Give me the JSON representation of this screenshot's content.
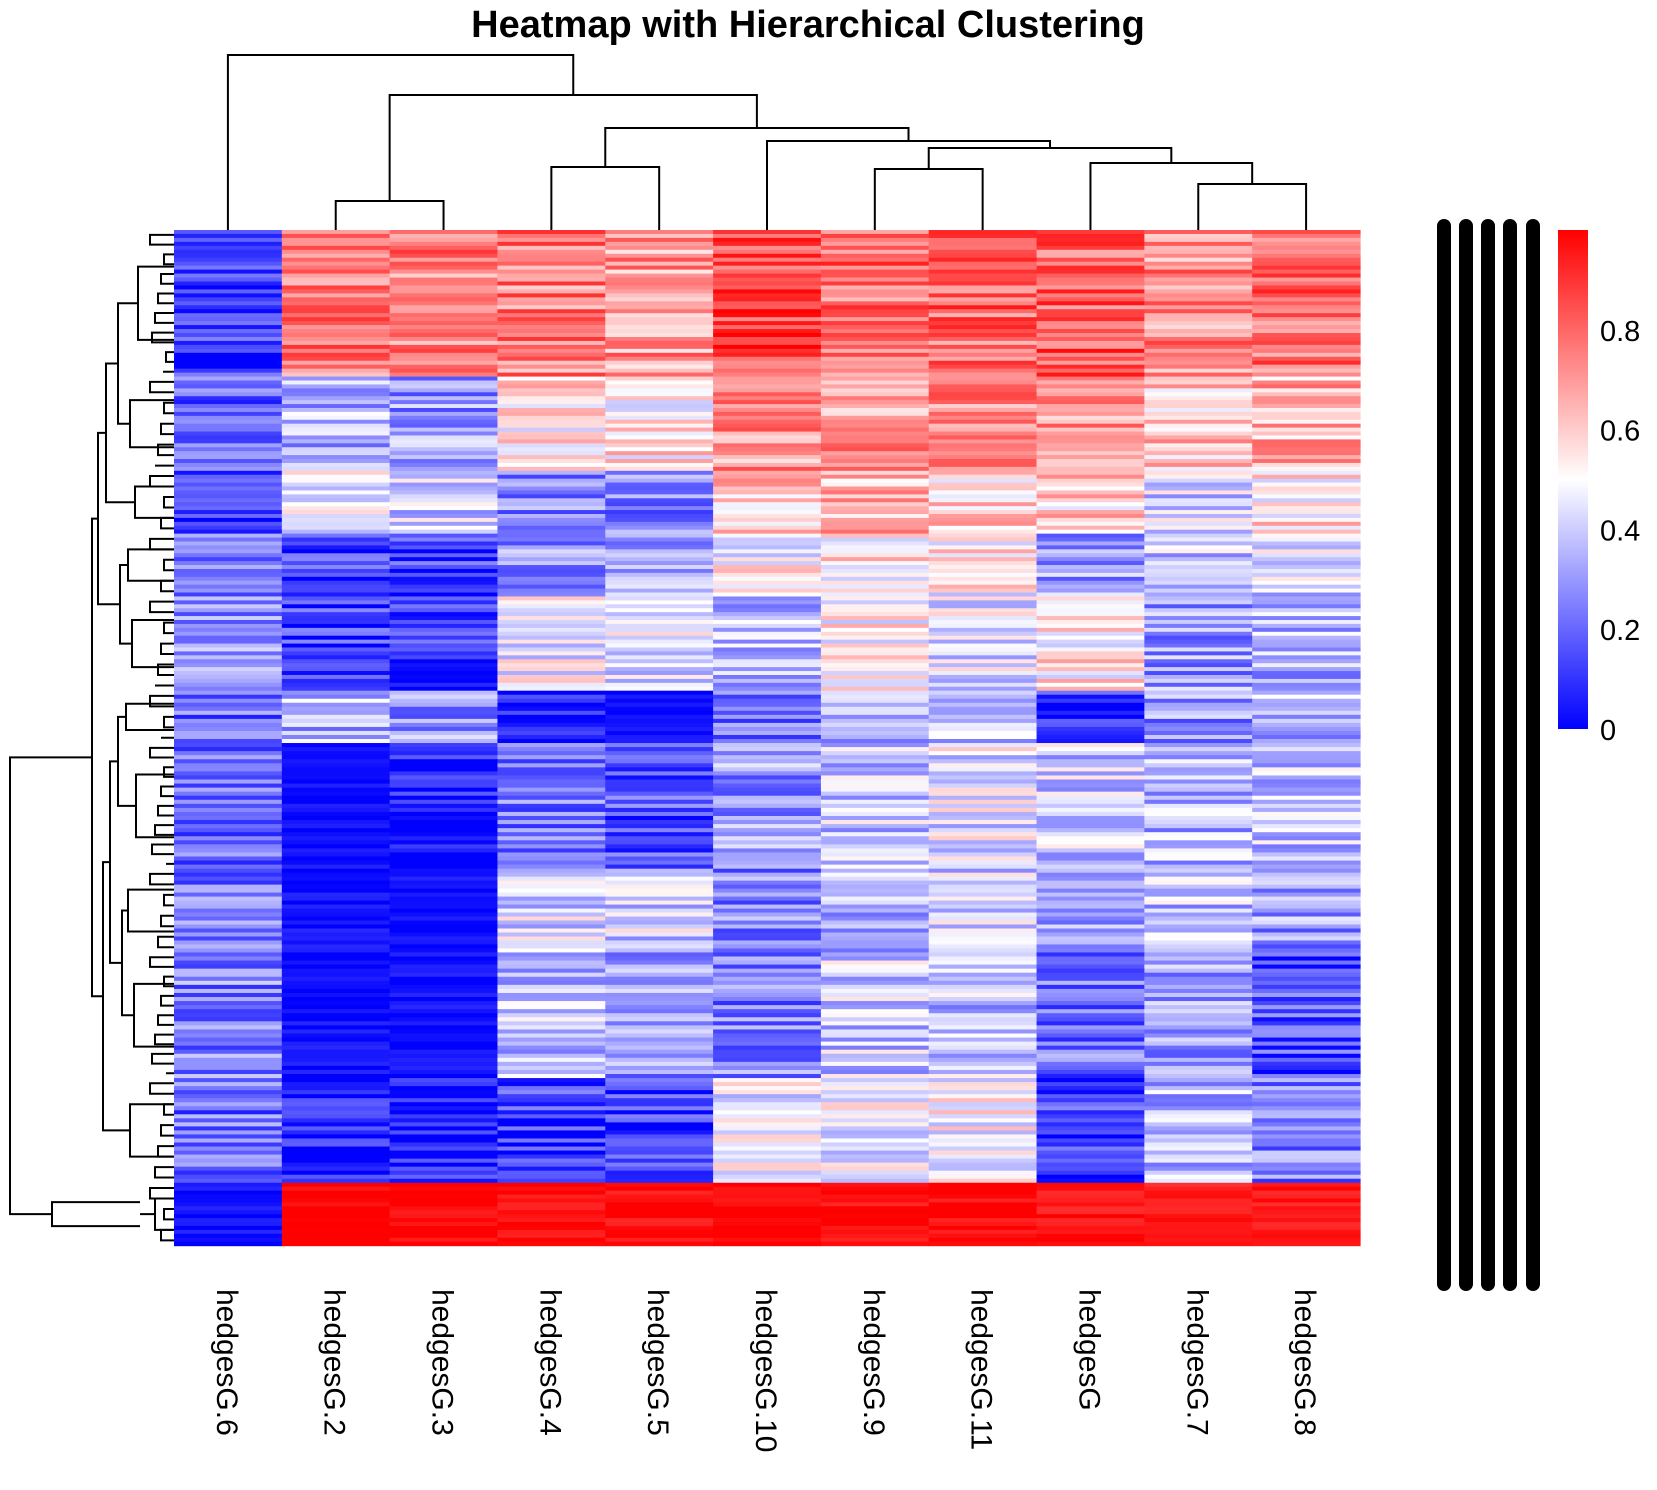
{
  "chart_data": {
    "type": "heatmap",
    "title": "Heatmap with Hierarchical Clustering",
    "xlabel": "",
    "ylabel": "",
    "columns": [
      "hedgesG.6",
      "hedgesG.2",
      "hedgesG.3",
      "hedgesG.4",
      "hedgesG.5",
      "hedgesG.10",
      "hedgesG.9",
      "hedgesG.11",
      "hedgesG",
      "hedgesG.7",
      "hedgesG.8"
    ],
    "row_labels": "dense, overlapping (illegible)",
    "row_blocks": [
      {
        "band": 1,
        "share": 0.14,
        "values": [
          0.12,
          0.75,
          0.75,
          0.75,
          0.7,
          0.85,
          0.78,
          0.8,
          0.82,
          0.72,
          0.78
        ]
      },
      {
        "band": 2,
        "share": 0.09,
        "values": [
          0.18,
          0.35,
          0.3,
          0.55,
          0.55,
          0.7,
          0.7,
          0.72,
          0.72,
          0.6,
          0.65
        ]
      },
      {
        "band": 3,
        "share": 0.06,
        "values": [
          0.15,
          0.5,
          0.42,
          0.28,
          0.25,
          0.62,
          0.65,
          0.6,
          0.6,
          0.42,
          0.55
        ]
      },
      {
        "band": 4,
        "share": 0.06,
        "values": [
          0.2,
          0.12,
          0.12,
          0.3,
          0.32,
          0.5,
          0.55,
          0.52,
          0.32,
          0.38,
          0.42
        ]
      },
      {
        "band": 5,
        "share": 0.09,
        "values": [
          0.28,
          0.12,
          0.1,
          0.48,
          0.45,
          0.38,
          0.52,
          0.45,
          0.55,
          0.3,
          0.35
        ]
      },
      {
        "band": 6,
        "share": 0.05,
        "values": [
          0.2,
          0.35,
          0.28,
          0.05,
          0.03,
          0.25,
          0.3,
          0.4,
          0.1,
          0.28,
          0.35
        ]
      },
      {
        "band": 7,
        "share": 0.12,
        "values": [
          0.22,
          0.03,
          0.05,
          0.22,
          0.15,
          0.3,
          0.4,
          0.45,
          0.4,
          0.35,
          0.38
        ]
      },
      {
        "band": 8,
        "share": 0.08,
        "values": [
          0.25,
          0.04,
          0.03,
          0.42,
          0.42,
          0.25,
          0.35,
          0.42,
          0.35,
          0.38,
          0.3
        ]
      },
      {
        "band": 9,
        "share": 0.12,
        "values": [
          0.25,
          0.03,
          0.03,
          0.38,
          0.28,
          0.25,
          0.4,
          0.38,
          0.22,
          0.3,
          0.15
        ]
      },
      {
        "band": 10,
        "share": 0.1,
        "values": [
          0.22,
          0.05,
          0.05,
          0.12,
          0.1,
          0.45,
          0.45,
          0.48,
          0.12,
          0.35,
          0.25
        ]
      },
      {
        "band": 11,
        "share": 0.06,
        "values": [
          0.03,
          0.99,
          0.99,
          0.97,
          0.97,
          0.98,
          0.97,
          0.98,
          0.96,
          0.95,
          0.95
        ]
      }
    ],
    "value_range": [
      0,
      1
    ],
    "colormap": {
      "low": "#0000ff",
      "mid": "#ffffff",
      "high": "#ff0000",
      "mid_value": 0.5
    },
    "legend": {
      "position": "right",
      "ticks": [
        "0",
        "0.2",
        "0.4",
        "0.6",
        "0.8"
      ],
      "tick_values": [
        0,
        0.2,
        0.4,
        0.6,
        0.8
      ]
    },
    "column_dendrogram": true,
    "row_dendrogram": true,
    "grid": false
  }
}
